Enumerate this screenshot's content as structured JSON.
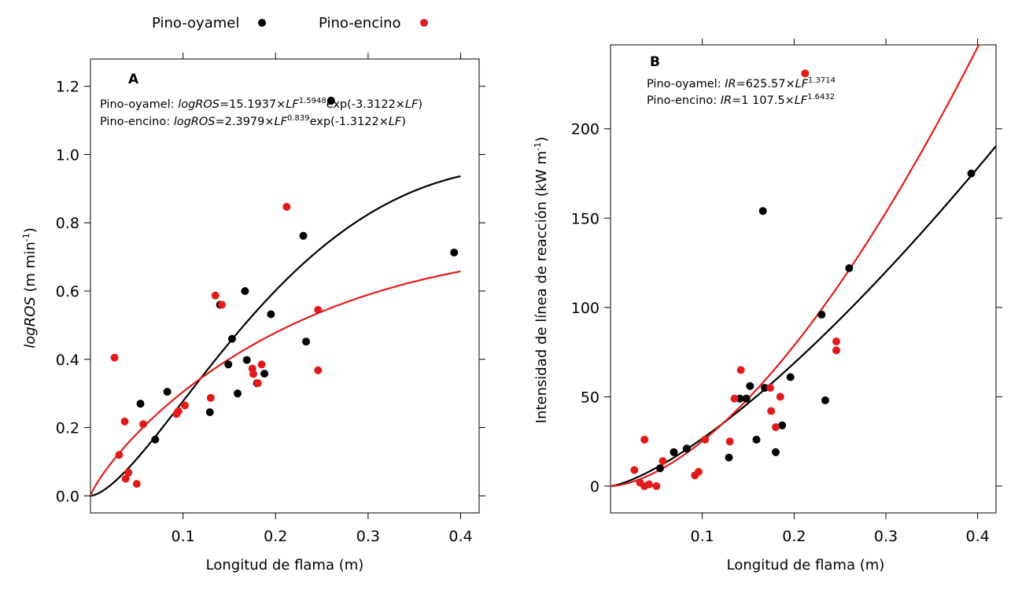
{
  "legend": {
    "items": [
      {
        "label": "Pino-oyamel",
        "color": "#000000"
      },
      {
        "label": "Pino-encino",
        "color": "#e11b1b"
      }
    ],
    "placement": "top-center"
  },
  "chart_data": [
    {
      "panel": "A",
      "type": "scatter",
      "xlabel": "Longitud de flama (m)",
      "ylabel": "logROS (m min⁻¹)",
      "ylabel_parts": {
        "italic": "logROS",
        "rest": " (m min",
        "sup": "-1",
        "close": ")"
      },
      "xlim": [
        0.0,
        0.42
      ],
      "ylim": [
        -0.05,
        1.28
      ],
      "xticks": [
        0.1,
        0.2,
        0.3,
        0.4
      ],
      "xtick_labels": [
        "0.1",
        "0.2",
        "0.3",
        "0.4"
      ],
      "yticks": [
        0.0,
        0.2,
        0.4,
        0.6,
        0.8,
        1.0,
        1.2
      ],
      "ytick_labels": [
        "0.0",
        "0.2",
        "0.4",
        "0.6",
        "0.8",
        "1.0",
        "1.2"
      ],
      "grid": false,
      "equations": [
        {
          "prefix": "Pino-oyamel: ",
          "var": "logROS",
          "eq": "=15.1937×",
          "lf": "LF",
          "exp": "1.5948",
          "tail": "exp(-3.3122×",
          "lf2": "LF",
          "close": ")"
        },
        {
          "prefix": "Pino-encino: ",
          "var": "logROS",
          "eq": "=2.3979×",
          "lf": "LF",
          "exp": "0.839",
          "tail": "exp(-1.3122×",
          "lf2": "LF",
          "close": ")"
        }
      ],
      "series": [
        {
          "name": "Pino-oyamel",
          "color": "#000000",
          "points": [
            [
              0.054,
              0.27
            ],
            [
              0.07,
              0.165
            ],
            [
              0.083,
              0.305
            ],
            [
              0.129,
              0.245
            ],
            [
              0.14,
              0.56
            ],
            [
              0.149,
              0.385
            ],
            [
              0.153,
              0.46
            ],
            [
              0.159,
              0.3
            ],
            [
              0.167,
              0.6
            ],
            [
              0.169,
              0.398
            ],
            [
              0.18,
              0.33
            ],
            [
              0.188,
              0.358
            ],
            [
              0.195,
              0.532
            ],
            [
              0.23,
              0.762
            ],
            [
              0.233,
              0.452
            ],
            [
              0.26,
              1.158
            ],
            [
              0.393,
              0.713
            ]
          ],
          "curve": {
            "a": 15.1937,
            "b": 1.5948,
            "c": 3.3122
          }
        },
        {
          "name": "Pino-encino",
          "color": "#e11b1b",
          "points": [
            [
              0.026,
              0.405
            ],
            [
              0.031,
              0.12
            ],
            [
              0.037,
              0.218
            ],
            [
              0.038,
              0.05
            ],
            [
              0.041,
              0.068
            ],
            [
              0.05,
              0.035
            ],
            [
              0.057,
              0.21
            ],
            [
              0.093,
              0.24
            ],
            [
              0.095,
              0.248
            ],
            [
              0.102,
              0.265
            ],
            [
              0.13,
              0.287
            ],
            [
              0.135,
              0.587
            ],
            [
              0.142,
              0.56
            ],
            [
              0.175,
              0.373
            ],
            [
              0.176,
              0.357
            ],
            [
              0.181,
              0.33
            ],
            [
              0.185,
              0.385
            ],
            [
              0.212,
              0.847
            ],
            [
              0.246,
              0.545
            ],
            [
              0.246,
              0.368
            ]
          ],
          "curve": {
            "a": 2.3979,
            "b": 0.839,
            "c": 1.3122
          }
        }
      ]
    },
    {
      "panel": "B",
      "type": "scatter",
      "xlabel": "Longitud de flama (m)",
      "ylabel": "Intensidad de línea de reacción (kW m⁻¹)",
      "ylabel_parts": {
        "italic": "",
        "rest": "Intensidad de línea de reacción (kW m",
        "sup": "-1",
        "close": ")"
      },
      "xlim": [
        0.0,
        0.42
      ],
      "ylim": [
        -15.0,
        247.0
      ],
      "xticks": [
        0.1,
        0.2,
        0.3,
        0.4
      ],
      "xtick_labels": [
        "0.1",
        "0.2",
        "0.3",
        "0.4"
      ],
      "yticks": [
        0,
        50,
        100,
        150,
        200
      ],
      "ytick_labels": [
        "0",
        "50",
        "100",
        "150",
        "200"
      ],
      "grid": false,
      "equations": [
        {
          "prefix": "Pino-oyamel: ",
          "var": "IR",
          "eq": "=625.57×",
          "lf": "LF",
          "exp": "1.3714",
          "tail": "",
          "lf2": "",
          "close": ""
        },
        {
          "prefix": "Pino-encino: ",
          "var": "IR",
          "eq": "=1 107.5×",
          "lf": "LF",
          "exp": "1.6432",
          "tail": "",
          "lf2": "",
          "close": ""
        }
      ],
      "series": [
        {
          "name": "Pino-oyamel",
          "color": "#000000",
          "points": [
            [
              0.054,
              10
            ],
            [
              0.069,
              19
            ],
            [
              0.083,
              21
            ],
            [
              0.129,
              16
            ],
            [
              0.141,
              49
            ],
            [
              0.148,
              49
            ],
            [
              0.152,
              56
            ],
            [
              0.159,
              26
            ],
            [
              0.166,
              154
            ],
            [
              0.168,
              55
            ],
            [
              0.18,
              19
            ],
            [
              0.187,
              34
            ],
            [
              0.196,
              61
            ],
            [
              0.23,
              96
            ],
            [
              0.234,
              48
            ],
            [
              0.26,
              122
            ],
            [
              0.393,
              175
            ]
          ],
          "curve": {
            "a": 625.57,
            "b": 1.3714
          }
        },
        {
          "name": "Pino-encino",
          "color": "#e11b1b",
          "points": [
            [
              0.026,
              9
            ],
            [
              0.032,
              2
            ],
            [
              0.037,
              26
            ],
            [
              0.037,
              0
            ],
            [
              0.042,
              1
            ],
            [
              0.05,
              0
            ],
            [
              0.057,
              14
            ],
            [
              0.092,
              6
            ],
            [
              0.096,
              8
            ],
            [
              0.103,
              26
            ],
            [
              0.13,
              25
            ],
            [
              0.135,
              49
            ],
            [
              0.142,
              65
            ],
            [
              0.174,
              55
            ],
            [
              0.175,
              42
            ],
            [
              0.18,
              33
            ],
            [
              0.185,
              50
            ],
            [
              0.212,
              231
            ],
            [
              0.246,
              81
            ],
            [
              0.246,
              76
            ]
          ],
          "curve": {
            "a": 1107.5,
            "b": 1.6432
          }
        }
      ]
    }
  ]
}
